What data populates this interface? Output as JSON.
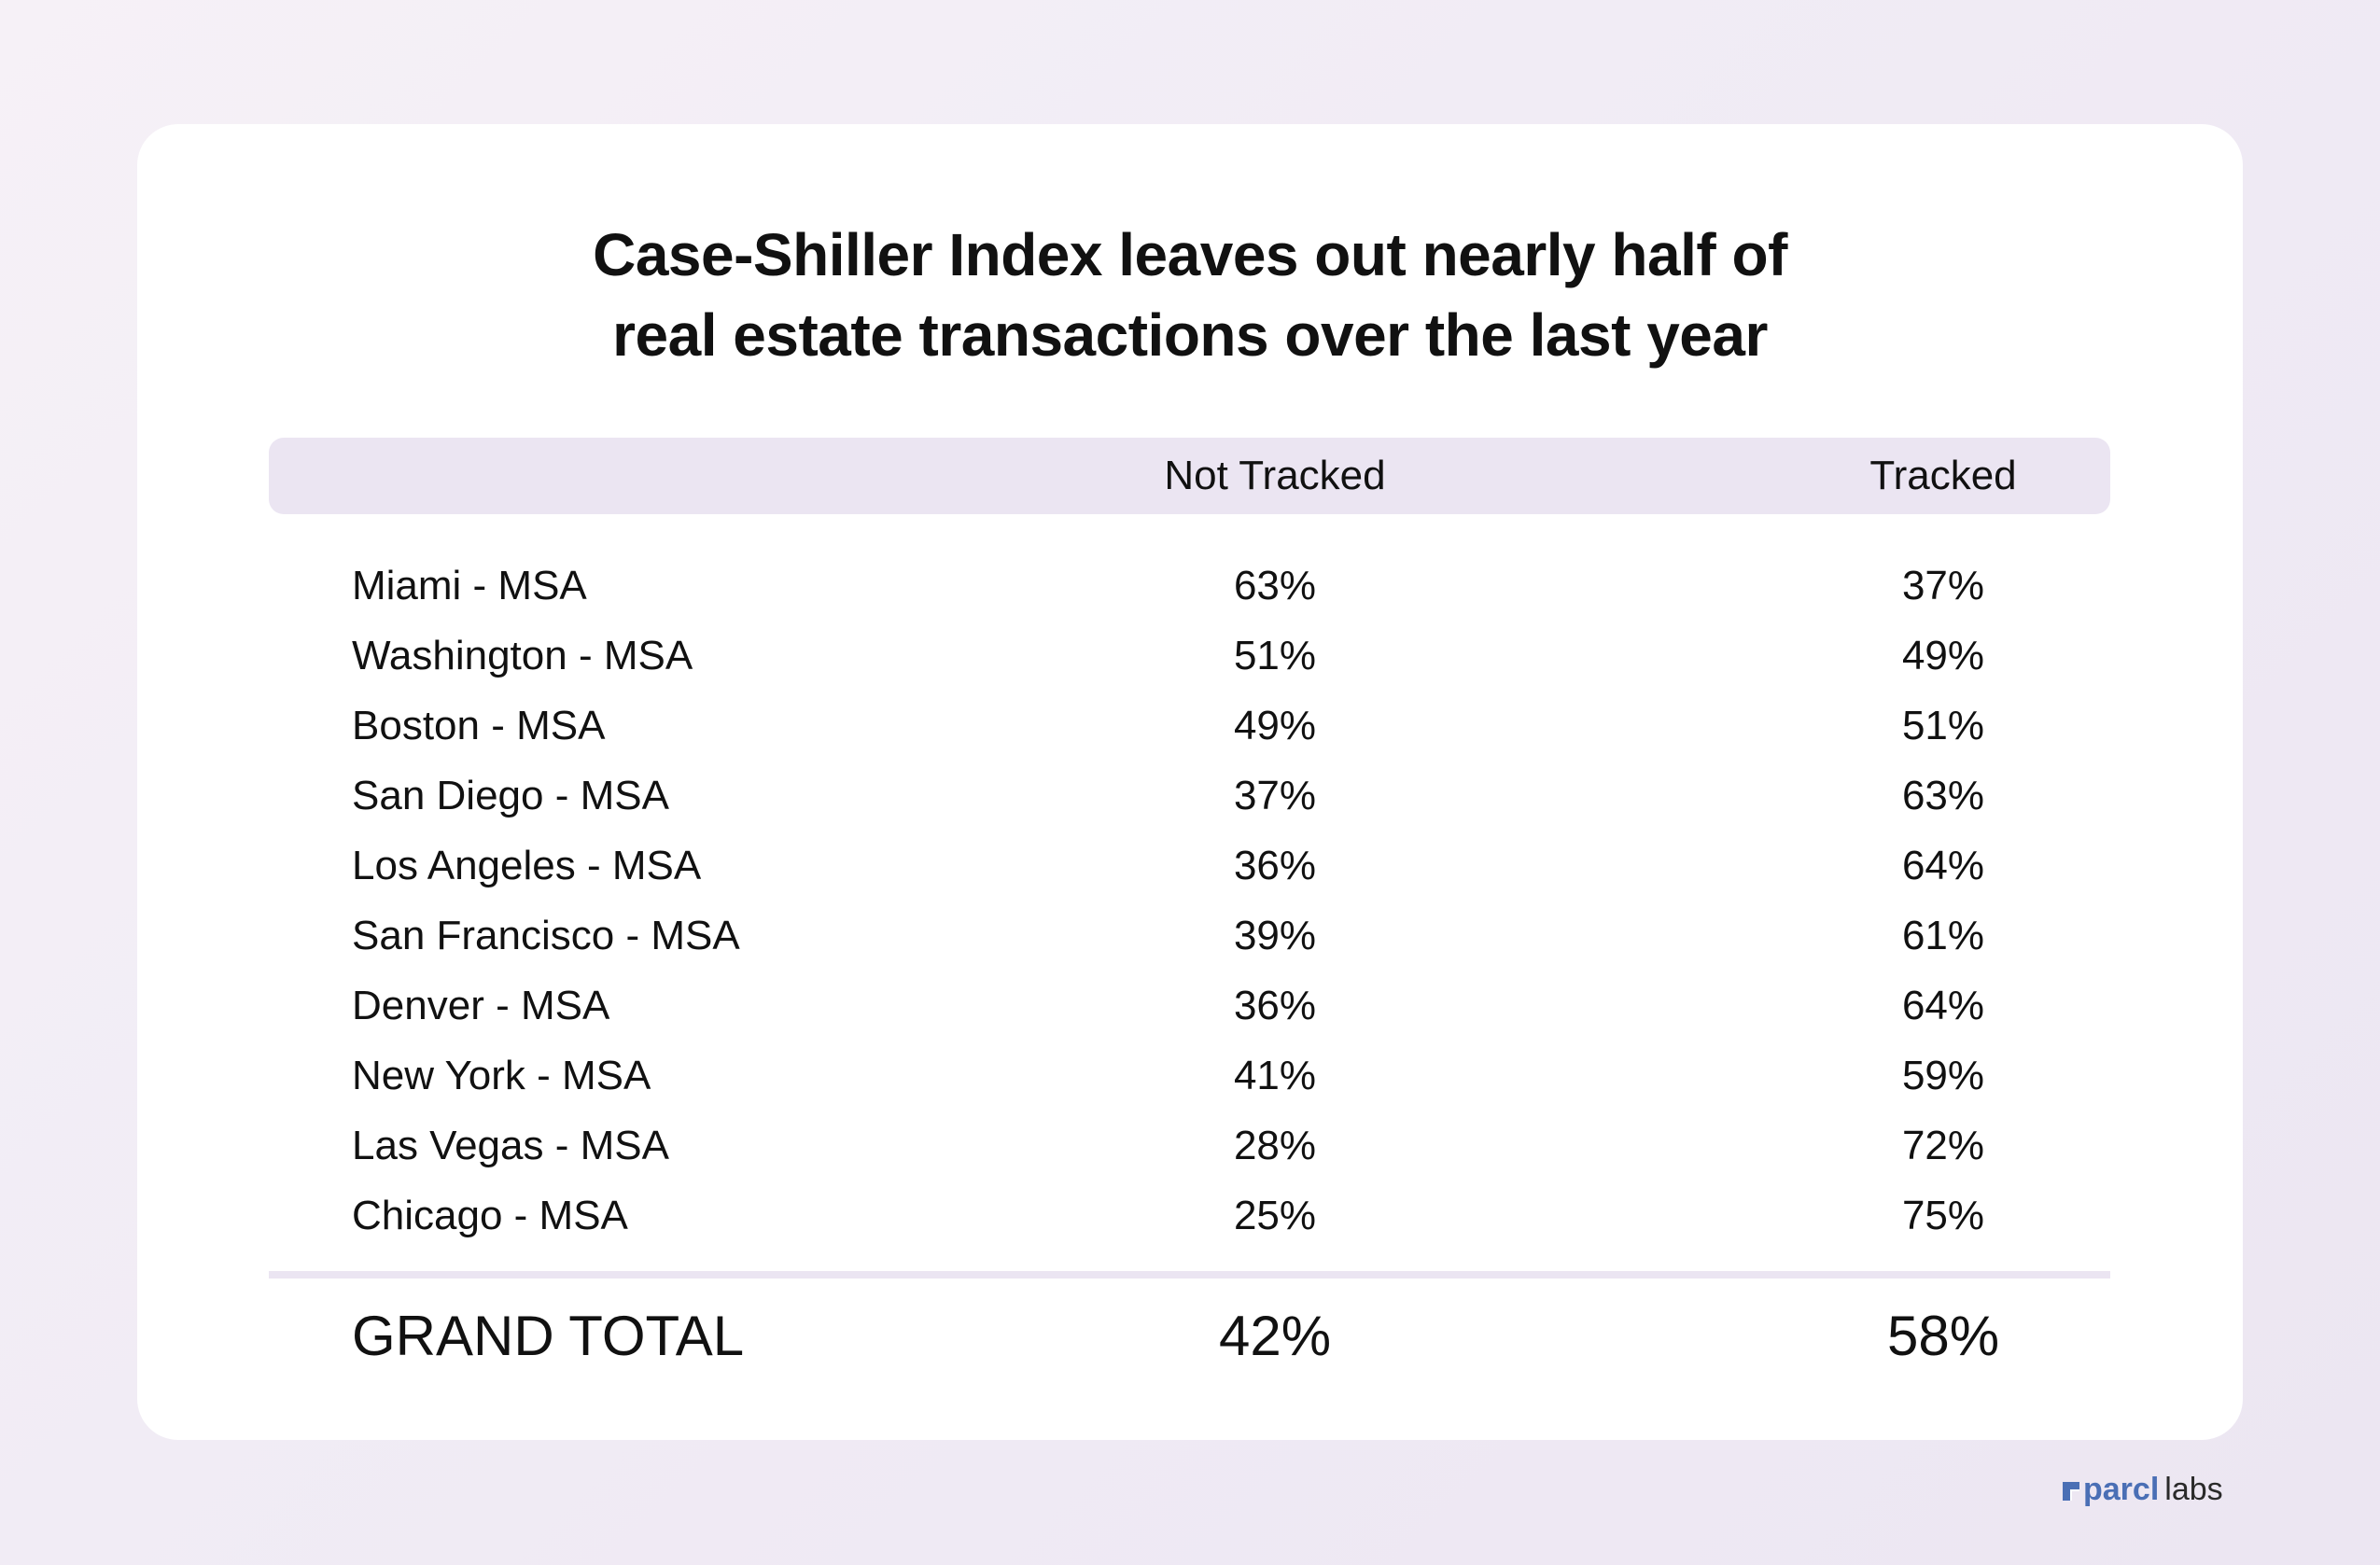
{
  "title_lines": [
    "Case-Shiller Index leaves out nearly half of",
    "real estate transactions over the last year"
  ],
  "chart_data": {
    "type": "table",
    "title": "Case-Shiller Index leaves out nearly half of real estate transactions over the last year",
    "columns": [
      "",
      "Not Tracked",
      "Tracked"
    ],
    "rows": [
      {
        "name": "Miami - MSA",
        "not_tracked": "63%",
        "tracked": "37%"
      },
      {
        "name": "Washington - MSA",
        "not_tracked": "51%",
        "tracked": "49%"
      },
      {
        "name": "Boston - MSA",
        "not_tracked": "49%",
        "tracked": "51%"
      },
      {
        "name": "San Diego - MSA",
        "not_tracked": "37%",
        "tracked": "63%"
      },
      {
        "name": "Los Angeles - MSA",
        "not_tracked": "36%",
        "tracked": "64%"
      },
      {
        "name": "San Francisco - MSA",
        "not_tracked": "39%",
        "tracked": "61%"
      },
      {
        "name": "Denver - MSA",
        "not_tracked": "36%",
        "tracked": "64%"
      },
      {
        "name": "New York - MSA",
        "not_tracked": "41%",
        "tracked": "59%"
      },
      {
        "name": "Las Vegas - MSA",
        "not_tracked": "28%",
        "tracked": "72%"
      },
      {
        "name": "Chicago - MSA",
        "not_tracked": "25%",
        "tracked": "75%"
      }
    ],
    "total": {
      "label": "GRAND TOTAL",
      "not_tracked": "42%",
      "tracked": "58%"
    }
  },
  "brand": {
    "name_bold": "parcl",
    "name_light": "labs",
    "icon": "parcl-logo-icon",
    "color": "#4a6fb5"
  },
  "colors": {
    "header_bar": "#ebe5f2",
    "divider": "#ebe5f2",
    "card": "#ffffff",
    "text": "#111111"
  }
}
